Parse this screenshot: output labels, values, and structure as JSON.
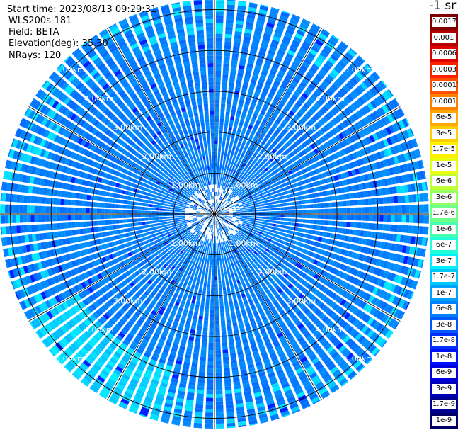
{
  "header": {
    "start_time": "Start time: 2023/08/13 09:29:31",
    "instrument": "WLS200s-181",
    "field": "Field: BETA",
    "elevation": "Elevation(deg): 35.30",
    "nrays": "NRays: 120"
  },
  "colorbar": {
    "unit": "-1 sr",
    "labels": [
      "0.0017",
      "0.001",
      "0.0006",
      "0.0003",
      "0.00017",
      "0.0001",
      "6e-5",
      "3e-5",
      "1.7e-5",
      "1e-5",
      "6e-6",
      "3e-6",
      "1.7e-6",
      "1e-6",
      "6e-7",
      "3e-7",
      "1.7e-7",
      "1e-7",
      "6e-8",
      "3e-8",
      "1.7e-8",
      "1e-8",
      "6e-9",
      "3e-9",
      "1.7e-9",
      "1e-9"
    ],
    "colors": [
      "#800000",
      "#b00000",
      "#e00000",
      "#ff2000",
      "#ff5000",
      "#ff8000",
      "#ffa800",
      "#ffd000",
      "#fff000",
      "#e8ff10",
      "#c0ff38",
      "#98ff60",
      "#70ff88",
      "#48ffb0",
      "#20ffd8",
      "#00f0ff",
      "#00c8ff",
      "#00a0ff",
      "#0080ff",
      "#0058ff",
      "#0030ff",
      "#0010ff",
      "#0000e0",
      "#0000b8",
      "#000090",
      "#000068"
    ]
  },
  "chart_data": {
    "type": "ppi",
    "title": "",
    "nrays": 120,
    "elevation_deg": 35.3,
    "range_ring_labels": [
      "1.00km",
      "2.00km",
      "3.00km",
      "4.00km",
      "5.00km"
    ],
    "range_rings_km": [
      1,
      2,
      3,
      4,
      5
    ],
    "max_range_km": 5.25,
    "spoke_step_deg": 30,
    "typical_value_range": [
      "3e-8",
      "1e-7"
    ],
    "higher_value_sector": {
      "azimuth_deg": [
        195,
        240
      ],
      "range_km": [
        3.8,
        5.25
      ],
      "value": "3e-7"
    }
  }
}
